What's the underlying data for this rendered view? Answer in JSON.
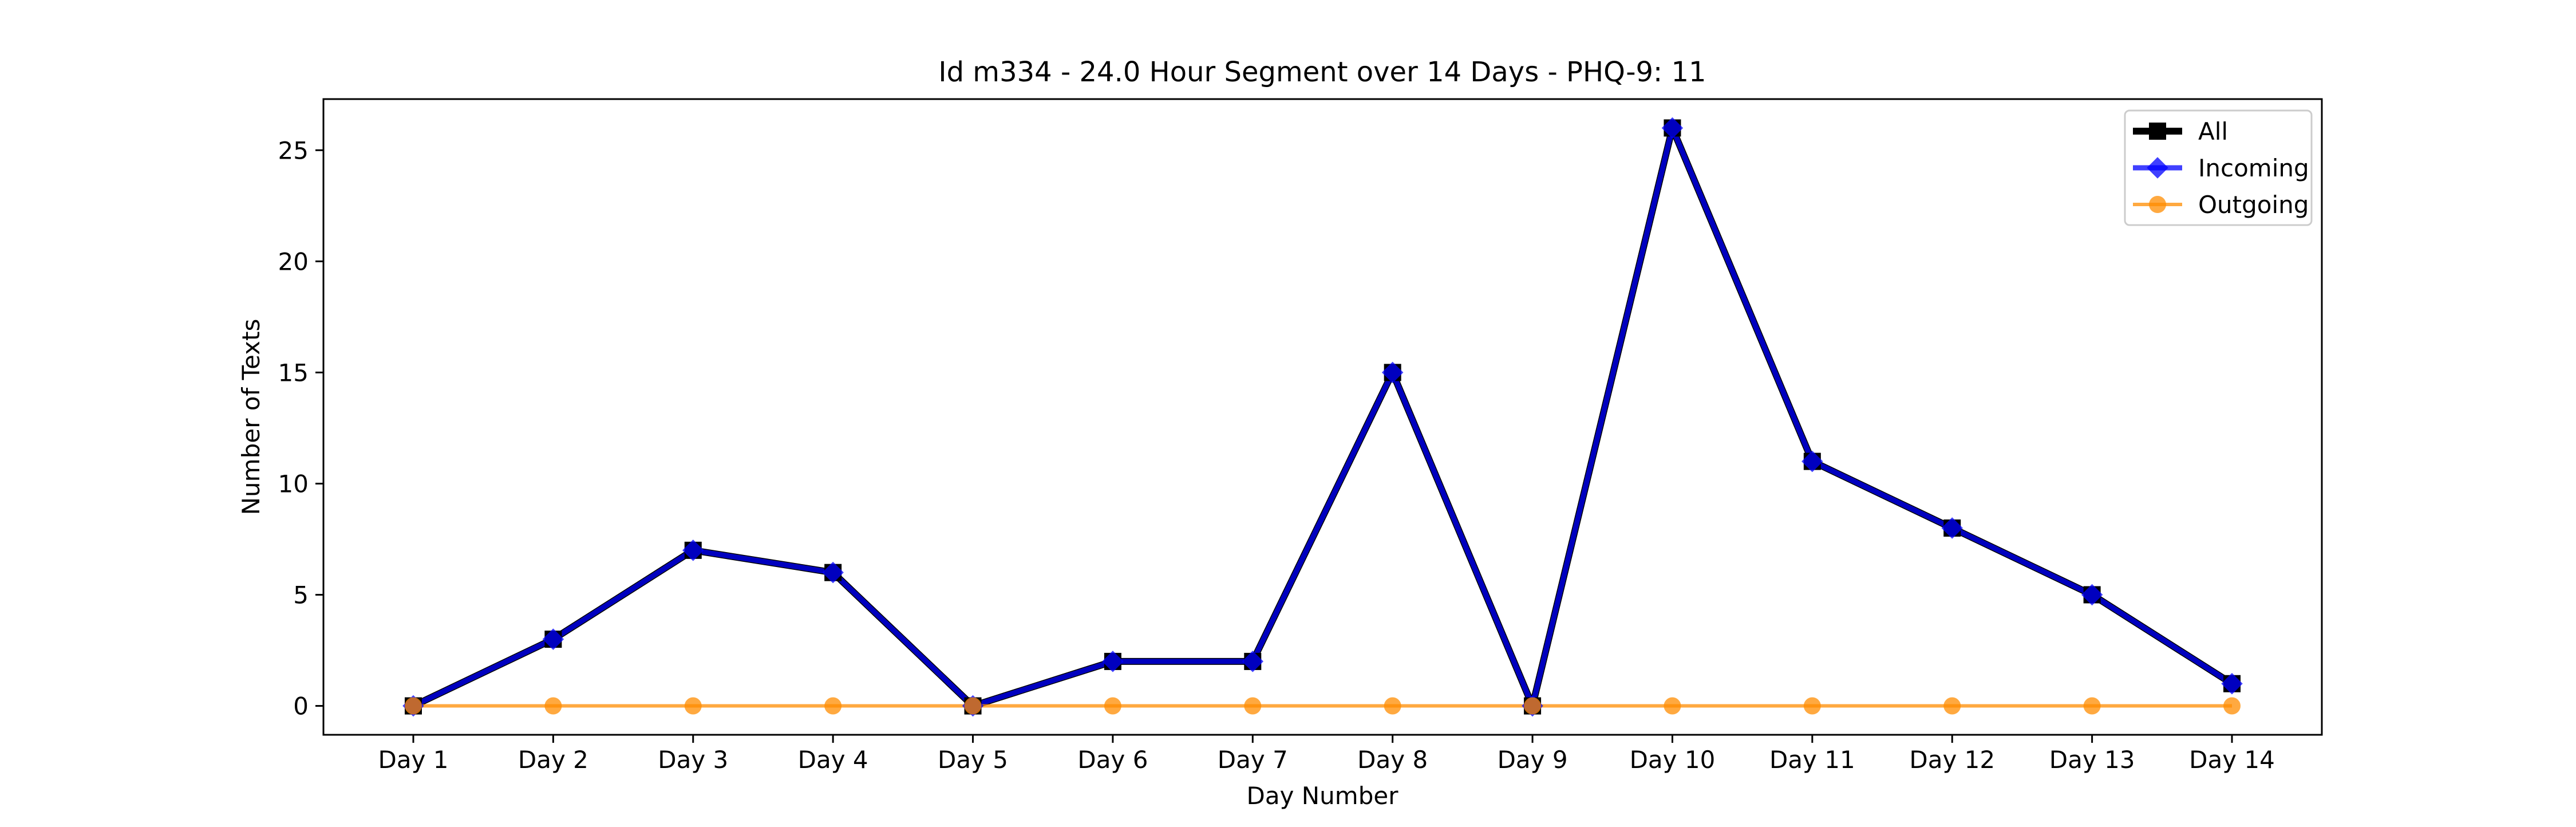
{
  "chart_data": {
    "type": "line",
    "title": "Id m334 - 24.0 Hour Segment over 14 Days - PHQ-9: 11",
    "xlabel": "Day Number",
    "ylabel": "Number of Texts",
    "categories": [
      "Day 1",
      "Day 2",
      "Day 3",
      "Day 4",
      "Day 5",
      "Day 6",
      "Day 7",
      "Day 8",
      "Day 9",
      "Day 10",
      "Day 11",
      "Day 12",
      "Day 13",
      "Day 14"
    ],
    "ylim": [
      -1.3,
      27.3
    ],
    "yticks": [
      0,
      5,
      10,
      15,
      20,
      25
    ],
    "grid": false,
    "legend_position": "top-right",
    "series": [
      {
        "name": "All",
        "color": "#000000",
        "marker": "square",
        "values": [
          0,
          3,
          7,
          6,
          0,
          2,
          2,
          15,
          0,
          26,
          11,
          8,
          5,
          1
        ]
      },
      {
        "name": "Incoming",
        "color": "#0000ff",
        "marker": "diamond",
        "values": [
          0,
          3,
          7,
          6,
          0,
          2,
          2,
          15,
          0,
          26,
          11,
          8,
          5,
          1
        ]
      },
      {
        "name": "Outgoing",
        "color": "#ff8c00",
        "marker": "circle",
        "values": [
          0,
          0,
          0,
          0,
          0,
          0,
          0,
          0,
          0,
          0,
          0,
          0,
          0,
          0
        ]
      }
    ]
  }
}
